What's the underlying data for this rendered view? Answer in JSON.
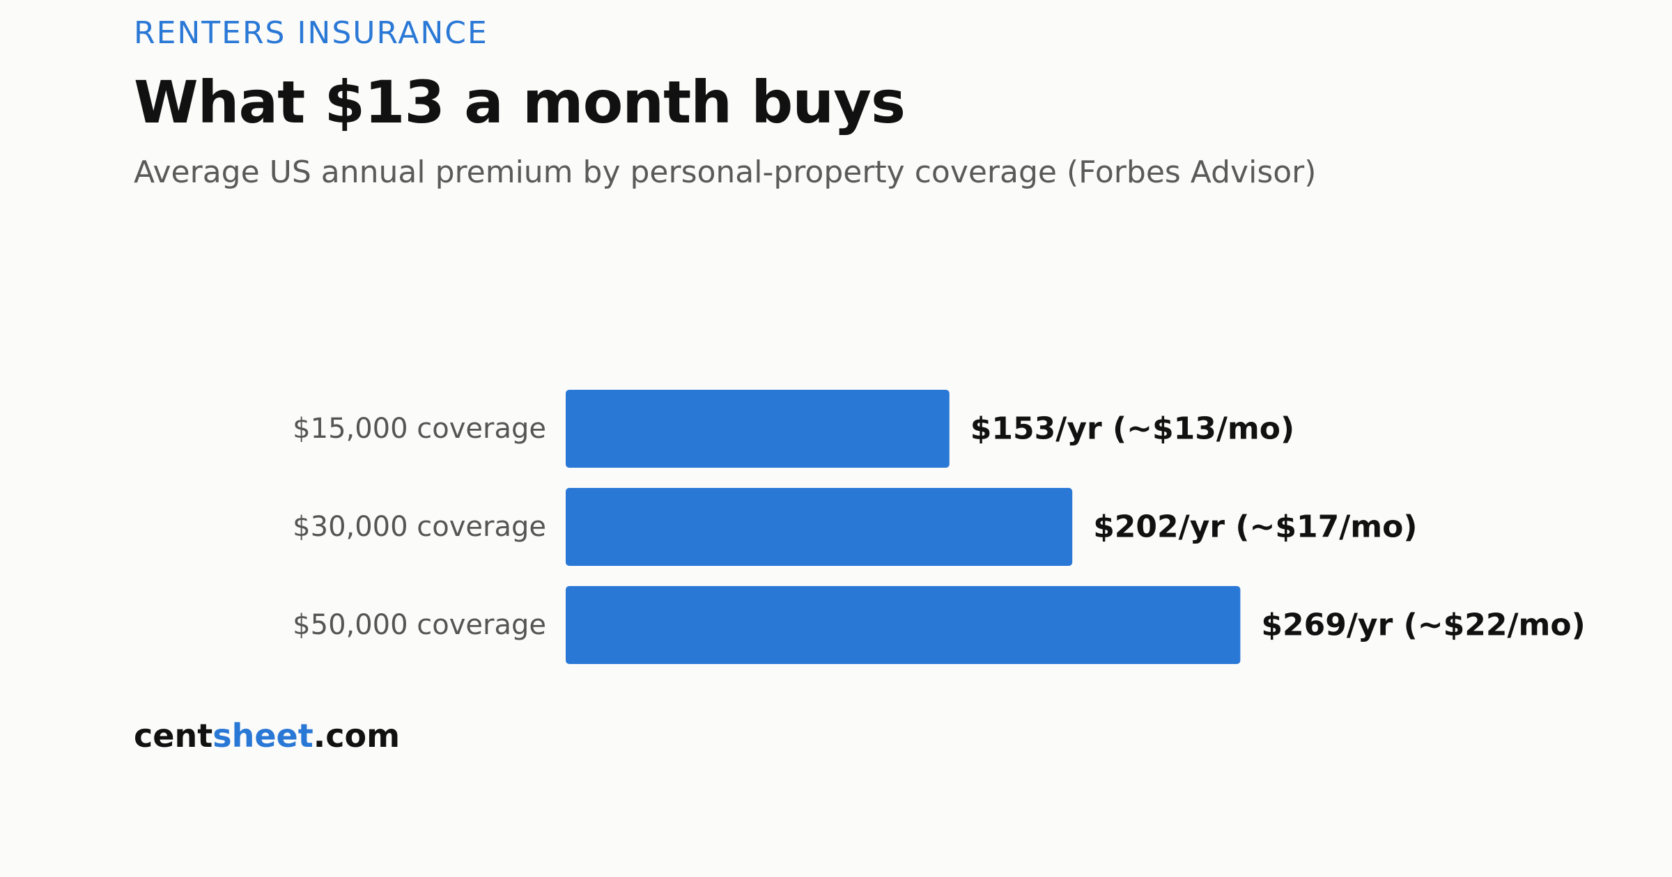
{
  "header": {
    "kicker": "RENTERS INSURANCE",
    "title": "What $13 a month buys",
    "subtitle": "Average US annual premium by personal-property coverage (Forbes Advisor)"
  },
  "brand": {
    "part1": "cent",
    "part2": "sheet",
    "part3": ".com"
  },
  "colors": {
    "bar": "#2a78d6",
    "accent": "#2a78d6"
  },
  "chart_data": {
    "type": "bar",
    "orientation": "horizontal",
    "categories": [
      "$15,000 coverage",
      "$30,000 coverage",
      "$50,000 coverage"
    ],
    "values": [
      153,
      202,
      269
    ],
    "value_labels": [
      "$153/yr (~$13/mo)",
      "$202/yr (~$17/mo)",
      "$269/yr (~$22/mo)"
    ],
    "unit": "$/yr",
    "title": "What $13 a month buys",
    "subtitle": "Average US annual premium by personal-property coverage (Forbes Advisor)",
    "xlabel": "",
    "ylabel": "",
    "grid": false,
    "legend": "none"
  }
}
